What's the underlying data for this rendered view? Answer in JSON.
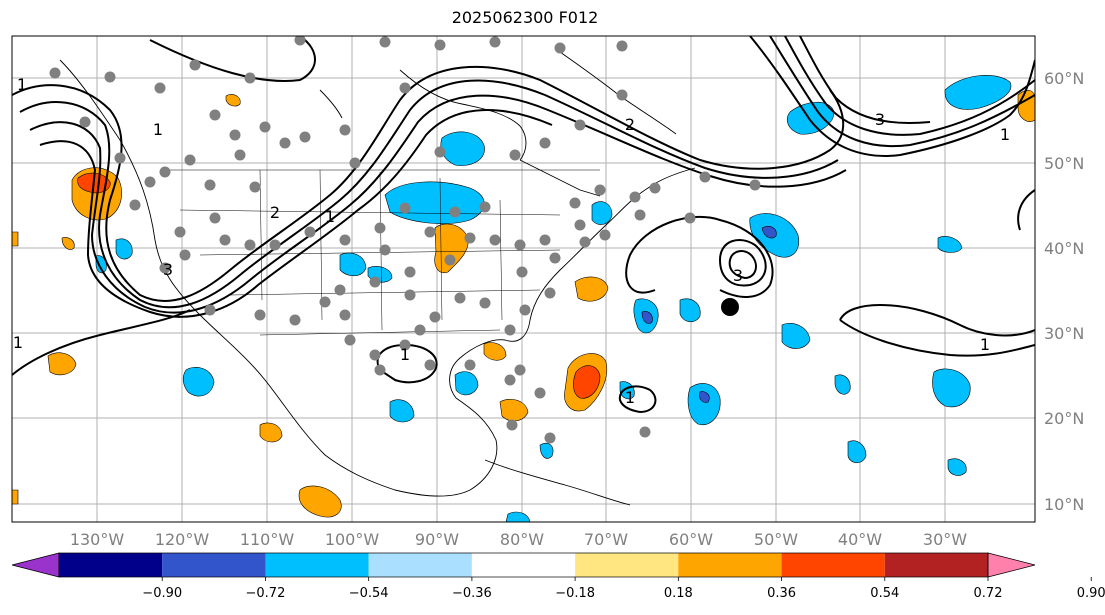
{
  "title": "2025062300 F012",
  "axes": {
    "lon_labels": [
      "130°W",
      "120°W",
      "110°W",
      "100°W",
      "90°W",
      "80°W",
      "70°W",
      "60°W",
      "50°W",
      "40°W",
      "30°W"
    ],
    "lat_labels": [
      "60°N",
      "50°N",
      "40°N",
      "30°N",
      "20°N",
      "10°N"
    ],
    "label_color": "#808080"
  },
  "contour_labels": [
    "1",
    "1",
    "2",
    "3",
    "1",
    "1",
    "3",
    "3",
    "2",
    "1",
    "1",
    "1",
    "1"
  ],
  "colorbar": {
    "ticks": [
      "−0.90",
      "−0.72",
      "−0.54",
      "−0.36",
      "−0.18",
      "0.18",
      "0.36",
      "0.54",
      "0.72",
      "0.90"
    ],
    "colors": [
      "#9933cc",
      "#00008b",
      "#3355cc",
      "#00bfff",
      "#aadfff",
      "#ffffff",
      "#ffe680",
      "#ffa500",
      "#ff4500",
      "#b22222",
      "#ff80aa"
    ]
  },
  "colors": {
    "cyan": "#00bfff",
    "blue": "#3355cc",
    "orange": "#ffa500",
    "red": "#ff4500",
    "station": "#808080",
    "grid": "#b0b0b0"
  }
}
